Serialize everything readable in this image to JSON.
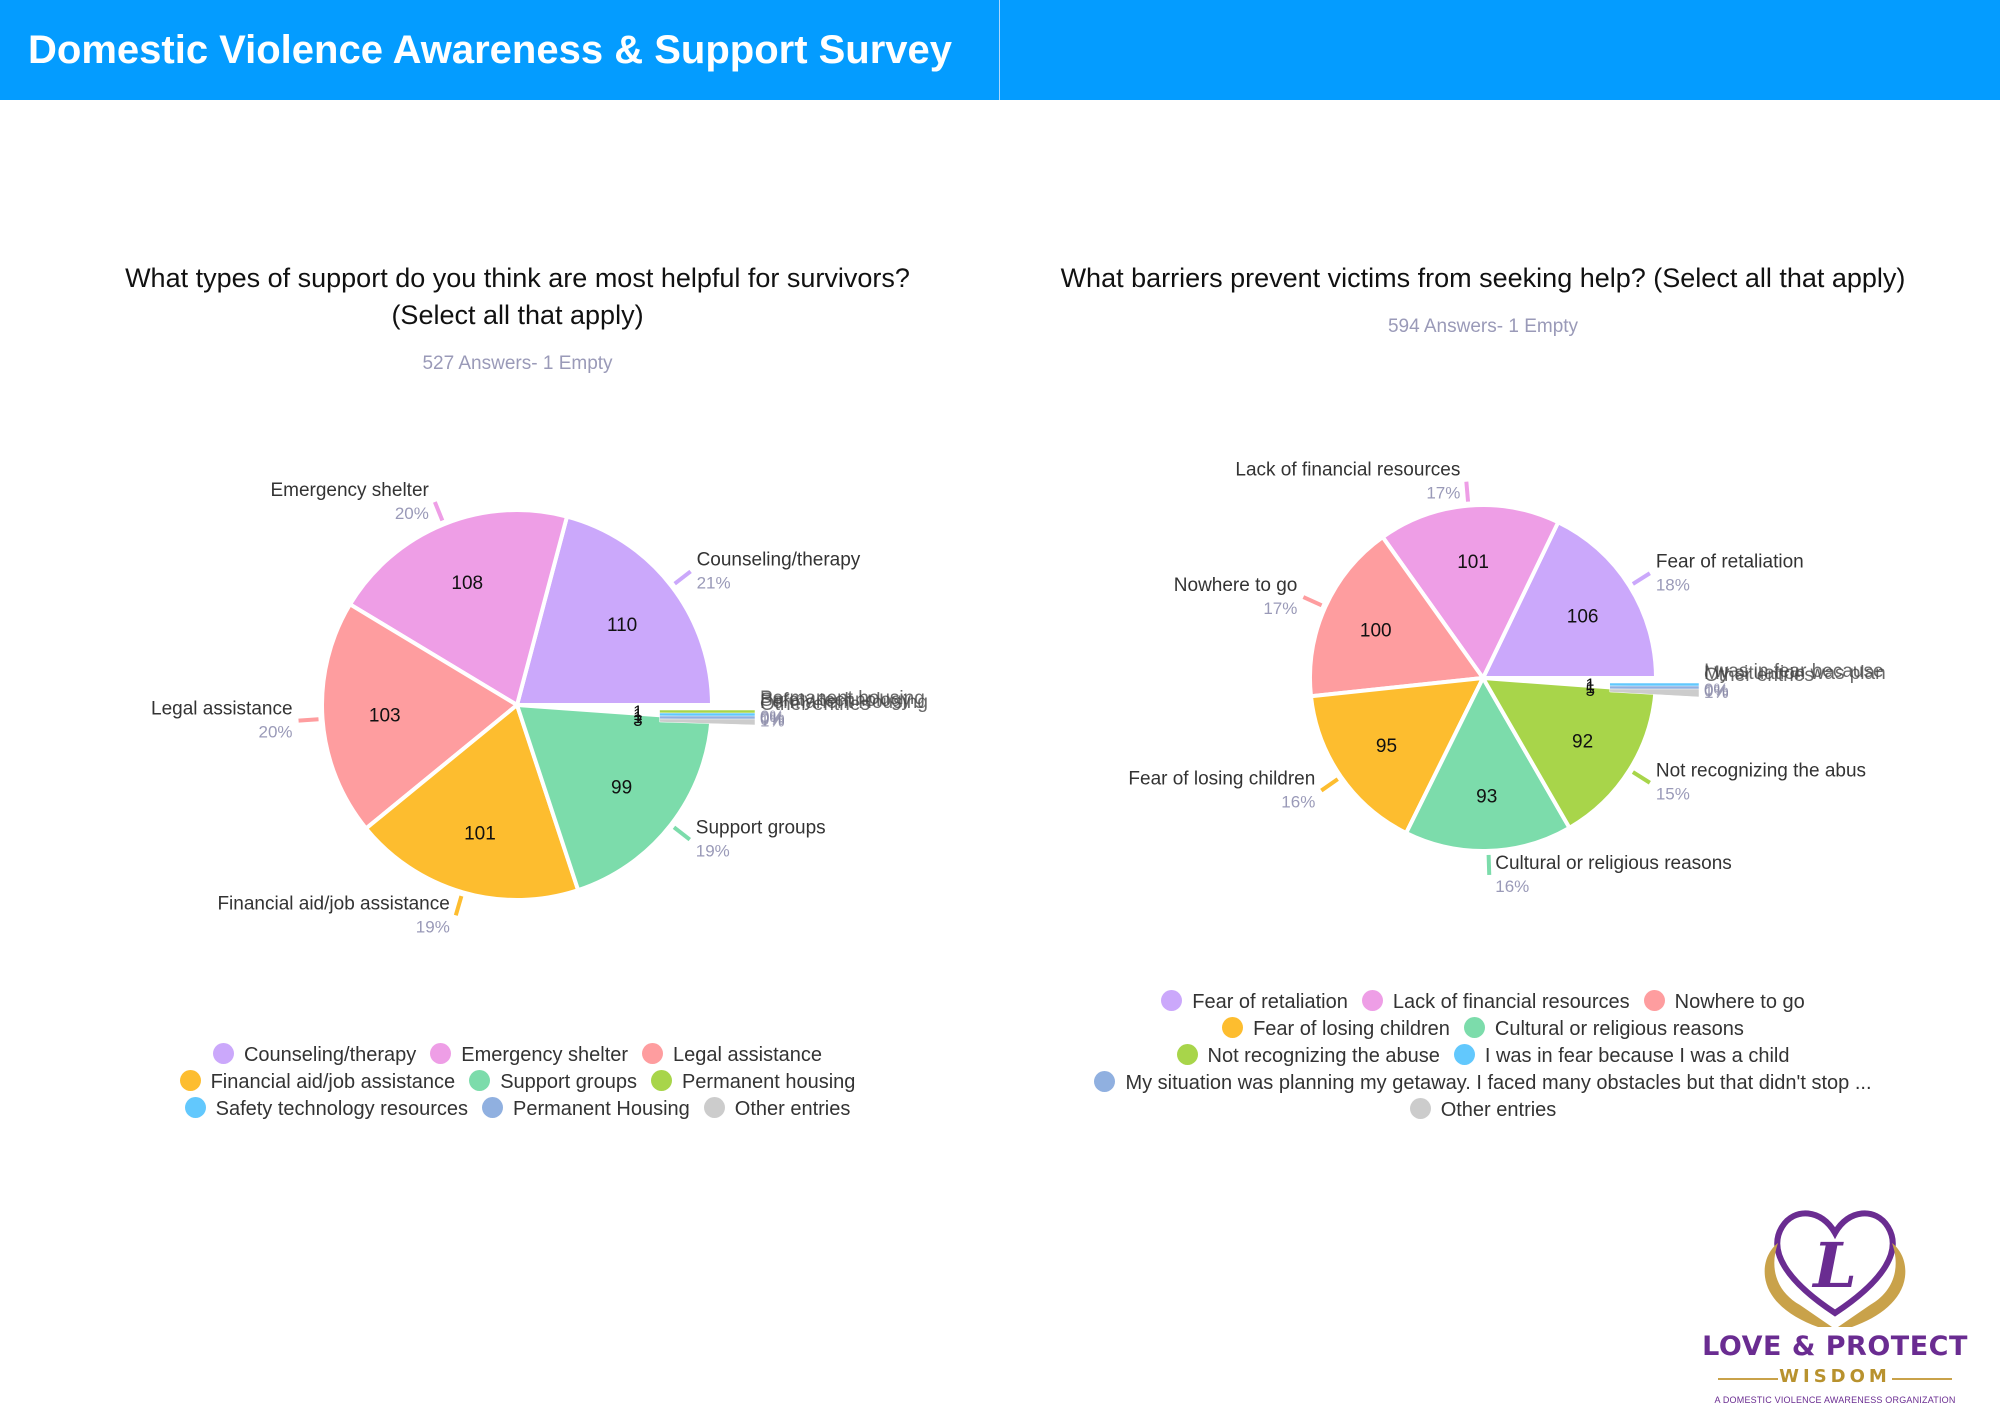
{
  "header": {
    "title": "Domestic Violence Awareness & Support Survey",
    "background_color": "#049cff"
  },
  "chart_data": [
    {
      "type": "pie",
      "title": "What types of support do you think are most helpful for survivors? (Select all that apply)",
      "subtitle": "527 Answers- 1 Empty",
      "start": "3 o'clock, counter-clockwise",
      "legend_position": "bottom",
      "slices": [
        {
          "label": "Counseling/therapy",
          "value": 110,
          "percent": "21%",
          "color": "#cba8fb",
          "pie_label": "Counseling/therapy"
        },
        {
          "label": "Emergency shelter",
          "value": 108,
          "percent": "20%",
          "color": "#ee9ee6",
          "pie_label": "Emergency shelter"
        },
        {
          "label": "Legal assistance",
          "value": 103,
          "percent": "20%",
          "color": "#fe9d9f",
          "pie_label": "Legal assistance"
        },
        {
          "label": "Financial aid/job assistance",
          "value": 101,
          "percent": "19%",
          "color": "#fdbd2f",
          "pie_label": "Financial aid/job assistance"
        },
        {
          "label": "Support groups",
          "value": 99,
          "percent": "19%",
          "color": "#7cdcab",
          "pie_label": "Support groups"
        },
        {
          "label": "Permanent housing",
          "value": 1,
          "percent": "0%",
          "color": "#a8d54a",
          "pie_label": "Permanent housing"
        },
        {
          "label": "Safety technology resources",
          "value": 1,
          "percent": "0%",
          "color": "#62c8fd",
          "pie_label": "Safety technology"
        },
        {
          "label": "Permanent Housing",
          "value": 1,
          "percent": "0%",
          "color": "#90b0e0",
          "pie_label": "Permanent Housing"
        },
        {
          "label": "Other entries",
          "value": 3,
          "percent": "1%",
          "color": "#cccccc",
          "pie_label": "Other entries"
        }
      ],
      "legend_rows": [
        [
          0,
          1,
          2
        ],
        [
          3,
          4,
          5
        ],
        [
          6,
          7,
          8
        ]
      ]
    },
    {
      "type": "pie",
      "title": "What barriers prevent victims from seeking help? (Select all that apply)",
      "subtitle": "594 Answers- 1 Empty",
      "start": "3 o'clock, counter-clockwise",
      "legend_position": "bottom",
      "slices": [
        {
          "label": "Fear of retaliation",
          "value": 106,
          "percent": "18%",
          "color": "#cba8fb",
          "pie_label": "Fear of retaliation"
        },
        {
          "label": "Lack of financial resources",
          "value": 101,
          "percent": "17%",
          "color": "#ee9ee6",
          "pie_label": "Lack of financial resources"
        },
        {
          "label": "Nowhere to go",
          "value": 100,
          "percent": "17%",
          "color": "#fe9d9f",
          "pie_label": "Nowhere to go"
        },
        {
          "label": "Fear of losing children",
          "value": 95,
          "percent": "16%",
          "color": "#fdbd2f",
          "pie_label": "Fear of losing children"
        },
        {
          "label": "Cultural or religious reasons",
          "value": 93,
          "percent": "16%",
          "color": "#7cdcab",
          "pie_label": "Cultural or religious reasons"
        },
        {
          "label": "Not recognizing the abuse",
          "value": 92,
          "percent": "15%",
          "color": "#a8d54a",
          "pie_label": "Not recognizing the abus"
        },
        {
          "label": "I was in fear because I was a child",
          "value": 1,
          "percent": "0%",
          "color": "#62c8fd",
          "pie_label": "I was in fear because"
        },
        {
          "label": "My situation was planning my getaway. I faced many obstacles but that didn't stop ...",
          "value": 1,
          "percent": "0%",
          "color": "#90b0e0",
          "pie_label": "My situation was plan"
        },
        {
          "label": "Other entries",
          "value": 5,
          "percent": "1%",
          "color": "#cccccc",
          "pie_label": "Other entries"
        }
      ],
      "legend_rows": [
        [
          0,
          1,
          2
        ],
        [
          3,
          4
        ],
        [
          5,
          6
        ],
        [
          7
        ],
        [
          8
        ]
      ]
    }
  ],
  "logo": {
    "brand": "LOVE & PROTECT",
    "sub": "WISDOM",
    "tagline": "A DOMESTIC VIOLENCE AWARENESS ORGANIZATION",
    "monogram": "L",
    "purple": "#6a2c91",
    "gold": "#c9a24a"
  }
}
